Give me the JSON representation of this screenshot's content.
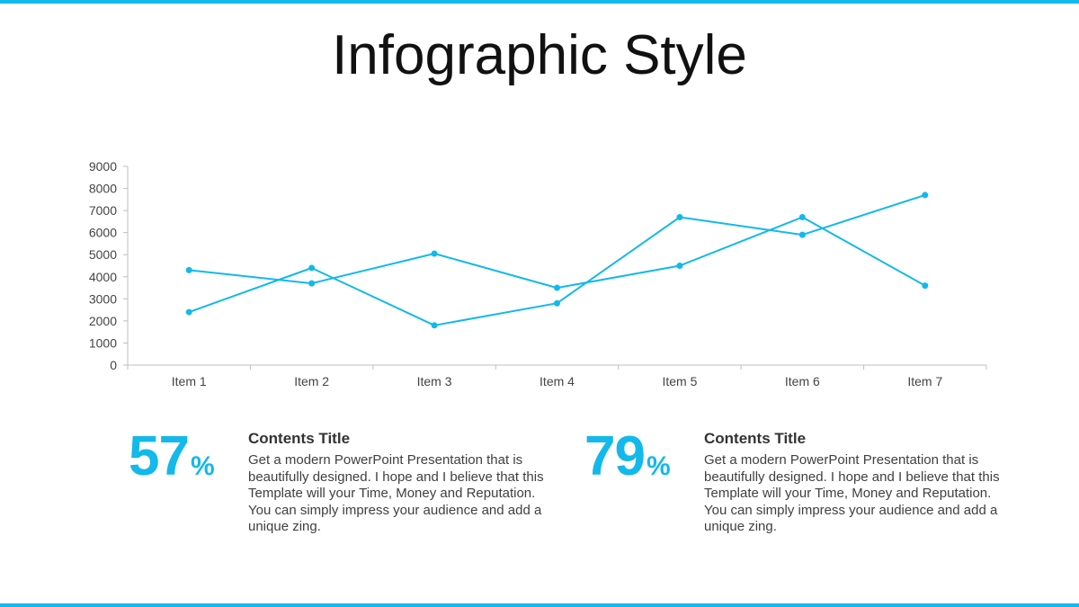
{
  "title": "Infographic Style",
  "accent_color": "#12b9ea",
  "chart_data": {
    "type": "line",
    "title": "",
    "xlabel": "",
    "ylabel": "",
    "categories": [
      "Item 1",
      "Item 2",
      "Item 3",
      "Item 4",
      "Item 5",
      "Item 6",
      "Item 7"
    ],
    "ylim": [
      0,
      9000
    ],
    "yticks": [
      "0",
      "1000",
      "2000",
      "3000",
      "4000",
      "5000",
      "6000",
      "7000",
      "8000",
      "9000"
    ],
    "grid": false,
    "series": [
      {
        "values": [
          4300,
          3700,
          5050,
          3500,
          4500,
          6700,
          3600
        ]
      },
      {
        "values": [
          2400,
          4400,
          1800,
          2800,
          6700,
          5900,
          7700
        ]
      }
    ]
  },
  "stats": [
    {
      "value": "57",
      "unit": "%",
      "heading": "Contents Title",
      "body": "Get a modern PowerPoint  Presentation that is beautifully designed. I hope and I believe that this Template will your Time, Money and Reputation. You can simply impress your audience and add a unique zing."
    },
    {
      "value": "79",
      "unit": "%",
      "heading": "Contents Title",
      "body": "Get a modern PowerPoint  Presentation that is beautifully designed. I hope and I believe that this Template will your Time, Money and Reputation. You can simply impress your audience and add a unique zing."
    }
  ]
}
